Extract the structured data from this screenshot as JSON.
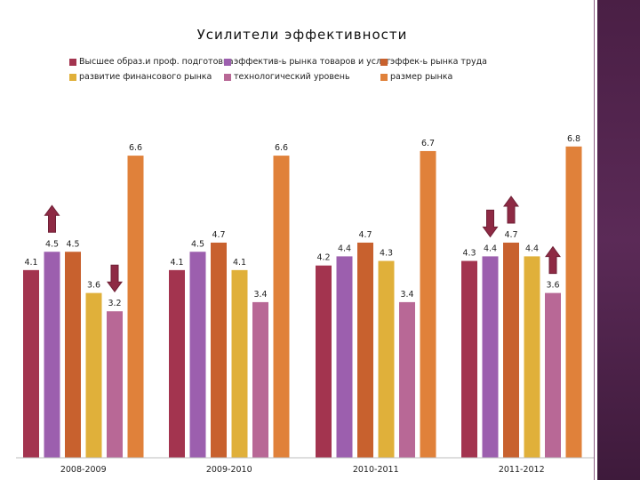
{
  "chart_data": {
    "type": "bar",
    "title": "Усилители эффективности",
    "categories": [
      "2008-2009",
      "2009-2010",
      "2010-2011",
      "2011-2012"
    ],
    "series": [
      {
        "name": "Высшее образ.и проф. подготовка",
        "color": "#a3344f",
        "values": [
          4.1,
          4.1,
          4.2,
          4.3
        ]
      },
      {
        "name": "эффектив-ь рынка товаров и услуг",
        "color": "#9c5fae",
        "values": [
          4.5,
          4.5,
          4.4,
          4.4
        ]
      },
      {
        "name": "эффек-ь рынка труда",
        "color": "#c8612e",
        "values": [
          4.5,
          4.7,
          4.7,
          4.7
        ]
      },
      {
        "name": "развитие финансового рынка",
        "color": "#e0b03a",
        "values": [
          3.6,
          4.1,
          4.3,
          4.4
        ]
      },
      {
        "name": "технологический уровень",
        "color": "#b86896",
        "values": [
          3.2,
          3.4,
          3.4,
          3.6
        ]
      },
      {
        "name": "размер рынка",
        "color": "#e0813a",
        "values": [
          6.6,
          6.6,
          6.7,
          6.8
        ]
      }
    ],
    "arrows": [
      {
        "group": 0,
        "series": 1,
        "direction": "up"
      },
      {
        "group": 0,
        "series": 4,
        "direction": "down"
      },
      {
        "group": 3,
        "series": 1,
        "direction": "down"
      },
      {
        "group": 3,
        "series": 2,
        "direction": "up"
      },
      {
        "group": 3,
        "series": 4,
        "direction": "up"
      }
    ],
    "arrow_color": "#8e2a44",
    "legend_position": "top",
    "grid": false
  }
}
